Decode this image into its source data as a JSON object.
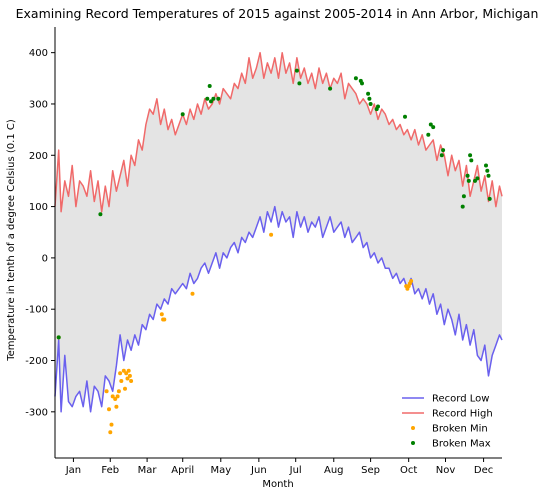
{
  "chart_data": {
    "type": "line",
    "title": "Examining Record Temperatures of 2015 against 2005-2014 in Ann Arbor, Michigan",
    "xlabel": "Month",
    "ylabel": "Temperature in tenth of a degree Celsius (0.1 C)",
    "x_range": [
      1,
      365
    ],
    "ylim": [
      -390,
      450
    ],
    "y_ticks": [
      -300,
      -200,
      -100,
      0,
      100,
      200,
      300,
      400
    ],
    "x_ticks": [
      {
        "label": "Jan",
        "day": 16
      },
      {
        "label": "Feb",
        "day": 46
      },
      {
        "label": "Mar",
        "day": 76
      },
      {
        "label": "April",
        "day": 105
      },
      {
        "label": "May",
        "day": 136
      },
      {
        "label": "Jun",
        "day": 167
      },
      {
        "label": "Jul",
        "day": 197
      },
      {
        "label": "Aug",
        "day": 228
      },
      {
        "label": "Sep",
        "day": 258
      },
      {
        "label": "Oct",
        "day": 289
      },
      {
        "label": "Nov",
        "day": 319
      },
      {
        "label": "Dec",
        "day": 350
      }
    ],
    "fill_between": {
      "color": "#e4e4e4",
      "series": [
        "Record Low",
        "Record High"
      ]
    },
    "legend_position": "lower-right",
    "series": [
      {
        "name": "Record Low",
        "kind": "line",
        "color": "#6a60ee",
        "x": [
          1,
          4,
          6,
          9,
          12,
          15,
          18,
          21,
          24,
          27,
          30,
          33,
          36,
          39,
          42,
          45,
          48,
          51,
          54,
          57,
          60,
          63,
          66,
          69,
          72,
          75,
          78,
          81,
          84,
          87,
          90,
          93,
          96,
          99,
          102,
          105,
          108,
          111,
          114,
          117,
          120,
          123,
          126,
          129,
          132,
          135,
          138,
          141,
          144,
          147,
          150,
          153,
          156,
          159,
          162,
          165,
          168,
          171,
          174,
          177,
          180,
          183,
          186,
          189,
          192,
          195,
          198,
          201,
          204,
          207,
          210,
          213,
          216,
          219,
          222,
          225,
          228,
          231,
          234,
          237,
          240,
          243,
          246,
          249,
          252,
          255,
          258,
          261,
          264,
          267,
          270,
          273,
          276,
          279,
          282,
          285,
          288,
          291,
          294,
          297,
          300,
          303,
          306,
          309,
          312,
          315,
          318,
          321,
          324,
          327,
          330,
          333,
          336,
          339,
          342,
          345,
          348,
          351,
          354,
          357,
          360,
          363,
          365
        ],
        "values": [
          -270,
          -160,
          -300,
          -190,
          -280,
          -290,
          -270,
          -260,
          -290,
          -240,
          -300,
          -250,
          -260,
          -290,
          -230,
          -240,
          -260,
          -210,
          -150,
          -200,
          -160,
          -180,
          -150,
          -170,
          -130,
          -140,
          -110,
          -120,
          -90,
          -100,
          -80,
          -90,
          -60,
          -70,
          -60,
          -50,
          -60,
          -30,
          -50,
          -40,
          -20,
          -10,
          -30,
          -10,
          10,
          -20,
          10,
          0,
          20,
          30,
          10,
          40,
          30,
          50,
          40,
          60,
          80,
          50,
          90,
          70,
          100,
          60,
          90,
          70,
          80,
          40,
          90,
          60,
          80,
          50,
          70,
          60,
          80,
          40,
          60,
          80,
          50,
          60,
          70,
          40,
          60,
          30,
          40,
          50,
          20,
          30,
          0,
          10,
          -10,
          0,
          -20,
          -20,
          -40,
          -30,
          -50,
          -40,
          -60,
          -40,
          -70,
          -60,
          -80,
          -60,
          -90,
          -70,
          -110,
          -90,
          -130,
          -100,
          -120,
          -150,
          -110,
          -160,
          -130,
          -170,
          -140,
          -190,
          -200,
          -170,
          -230,
          -190,
          -170,
          -150,
          -160
        ]
      },
      {
        "name": "Record High",
        "kind": "line",
        "color": "#f06a6a",
        "x": [
          1,
          4,
          6,
          9,
          12,
          15,
          18,
          21,
          24,
          27,
          30,
          33,
          36,
          39,
          42,
          45,
          48,
          51,
          54,
          57,
          60,
          63,
          66,
          69,
          72,
          75,
          78,
          81,
          84,
          87,
          90,
          93,
          96,
          99,
          102,
          105,
          108,
          111,
          114,
          117,
          120,
          123,
          126,
          129,
          132,
          135,
          138,
          141,
          144,
          147,
          150,
          153,
          156,
          159,
          162,
          165,
          168,
          171,
          174,
          177,
          180,
          183,
          186,
          189,
          192,
          195,
          198,
          201,
          204,
          207,
          210,
          213,
          216,
          219,
          222,
          225,
          228,
          231,
          234,
          237,
          240,
          243,
          246,
          249,
          252,
          255,
          258,
          261,
          264,
          267,
          270,
          273,
          276,
          279,
          282,
          285,
          288,
          291,
          294,
          297,
          300,
          303,
          306,
          309,
          312,
          315,
          318,
          321,
          324,
          327,
          330,
          333,
          336,
          339,
          342,
          345,
          348,
          351,
          354,
          357,
          360,
          363,
          365
        ],
        "values": [
          100,
          210,
          90,
          150,
          120,
          180,
          100,
          150,
          140,
          120,
          170,
          110,
          150,
          90,
          140,
          100,
          170,
          130,
          160,
          190,
          140,
          200,
          180,
          230,
          210,
          260,
          290,
          280,
          310,
          260,
          290,
          250,
          270,
          240,
          260,
          280,
          260,
          290,
          270,
          300,
          280,
          310,
          290,
          300,
          320,
          300,
          330,
          320,
          310,
          340,
          330,
          360,
          340,
          390,
          350,
          370,
          400,
          350,
          380,
          360,
          390,
          350,
          400,
          360,
          380,
          340,
          390,
          350,
          370,
          340,
          360,
          330,
          370,
          340,
          360,
          330,
          350,
          340,
          360,
          310,
          340,
          330,
          320,
          300,
          310,
          300,
          280,
          300,
          270,
          290,
          280,
          260,
          270,
          250,
          260,
          240,
          250,
          230,
          250,
          220,
          240,
          210,
          220,
          230,
          190,
          220,
          200,
          160,
          200,
          170,
          190,
          140,
          180,
          120,
          150,
          180,
          130,
          160,
          110,
          150,
          100,
          140,
          120
        ]
      },
      {
        "name": "Broken Min",
        "kind": "scatter",
        "color": "#ffa500",
        "x": [
          4,
          43,
          45,
          46,
          47,
          48,
          50,
          51,
          52,
          53,
          54,
          55,
          57,
          58,
          59,
          60,
          61,
          62,
          63,
          88,
          89,
          90,
          113,
          177,
          287,
          288,
          289,
          290,
          291
        ],
        "values": [
          -155,
          -260,
          -295,
          -340,
          -325,
          -270,
          -275,
          -290,
          -270,
          -260,
          -225,
          -240,
          -220,
          -255,
          -225,
          -235,
          -220,
          -230,
          -240,
          -110,
          -120,
          -120,
          -70,
          45,
          -55,
          -60,
          -55,
          -50,
          -45
        ]
      },
      {
        "name": "Broken Max",
        "kind": "scatter",
        "color": "#008000",
        "x": [
          4,
          38,
          105,
          125,
          127,
          128,
          130,
          134,
          198,
          200,
          225,
          246,
          250,
          251,
          256,
          257,
          258,
          263,
          264,
          286,
          305,
          307,
          309,
          316,
          317,
          333,
          334,
          337,
          338,
          339,
          340,
          343,
          345,
          352,
          353,
          354,
          355
        ],
        "values": [
          -155,
          85,
          280,
          310,
          335,
          305,
          310,
          310,
          365,
          340,
          330,
          350,
          345,
          340,
          320,
          310,
          300,
          290,
          295,
          275,
          240,
          260,
          255,
          200,
          210,
          100,
          120,
          160,
          150,
          200,
          190,
          150,
          155,
          180,
          170,
          160,
          115
        ]
      }
    ]
  }
}
